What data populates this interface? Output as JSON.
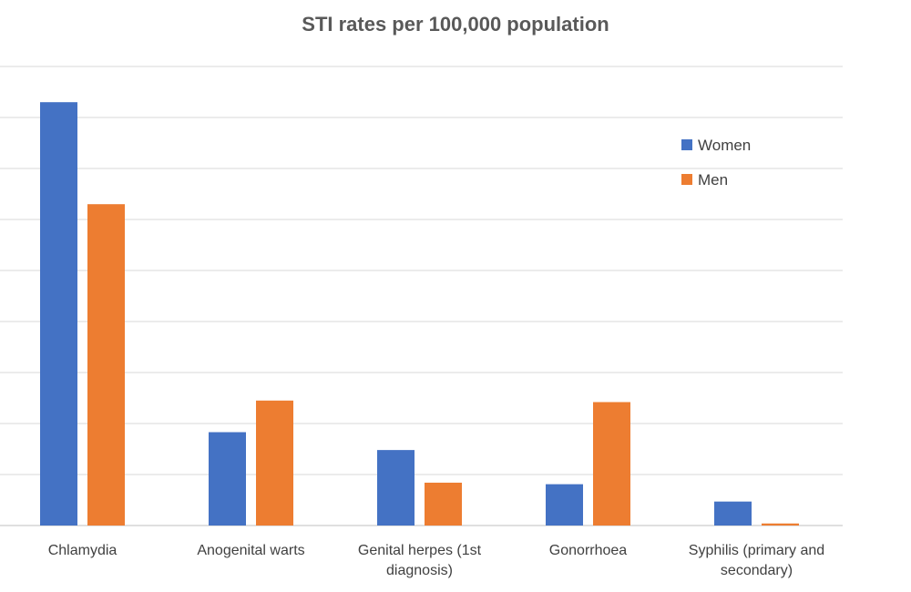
{
  "chart_data": {
    "type": "bar",
    "title": "STI rates per 100,000 population",
    "categories": [
      [
        "Chlamydia"
      ],
      [
        "Anogenital warts"
      ],
      [
        "Genital herpes (1st",
        "diagnosis)"
      ],
      [
        "Gonorrhoea"
      ],
      [
        "Syphilis (primary and",
        "secondary)"
      ]
    ],
    "series": [
      {
        "name": "Women",
        "color": "#4472C4",
        "values": [
          830,
          183,
          148,
          81,
          47
        ]
      },
      {
        "name": "Men",
        "color": "#ED7D31",
        "values": [
          630,
          245,
          84,
          242,
          4
        ]
      }
    ],
    "ylim": [
      0,
      900
    ],
    "grid": true,
    "legend": "top-right",
    "xlabel": "",
    "ylabel": ""
  }
}
